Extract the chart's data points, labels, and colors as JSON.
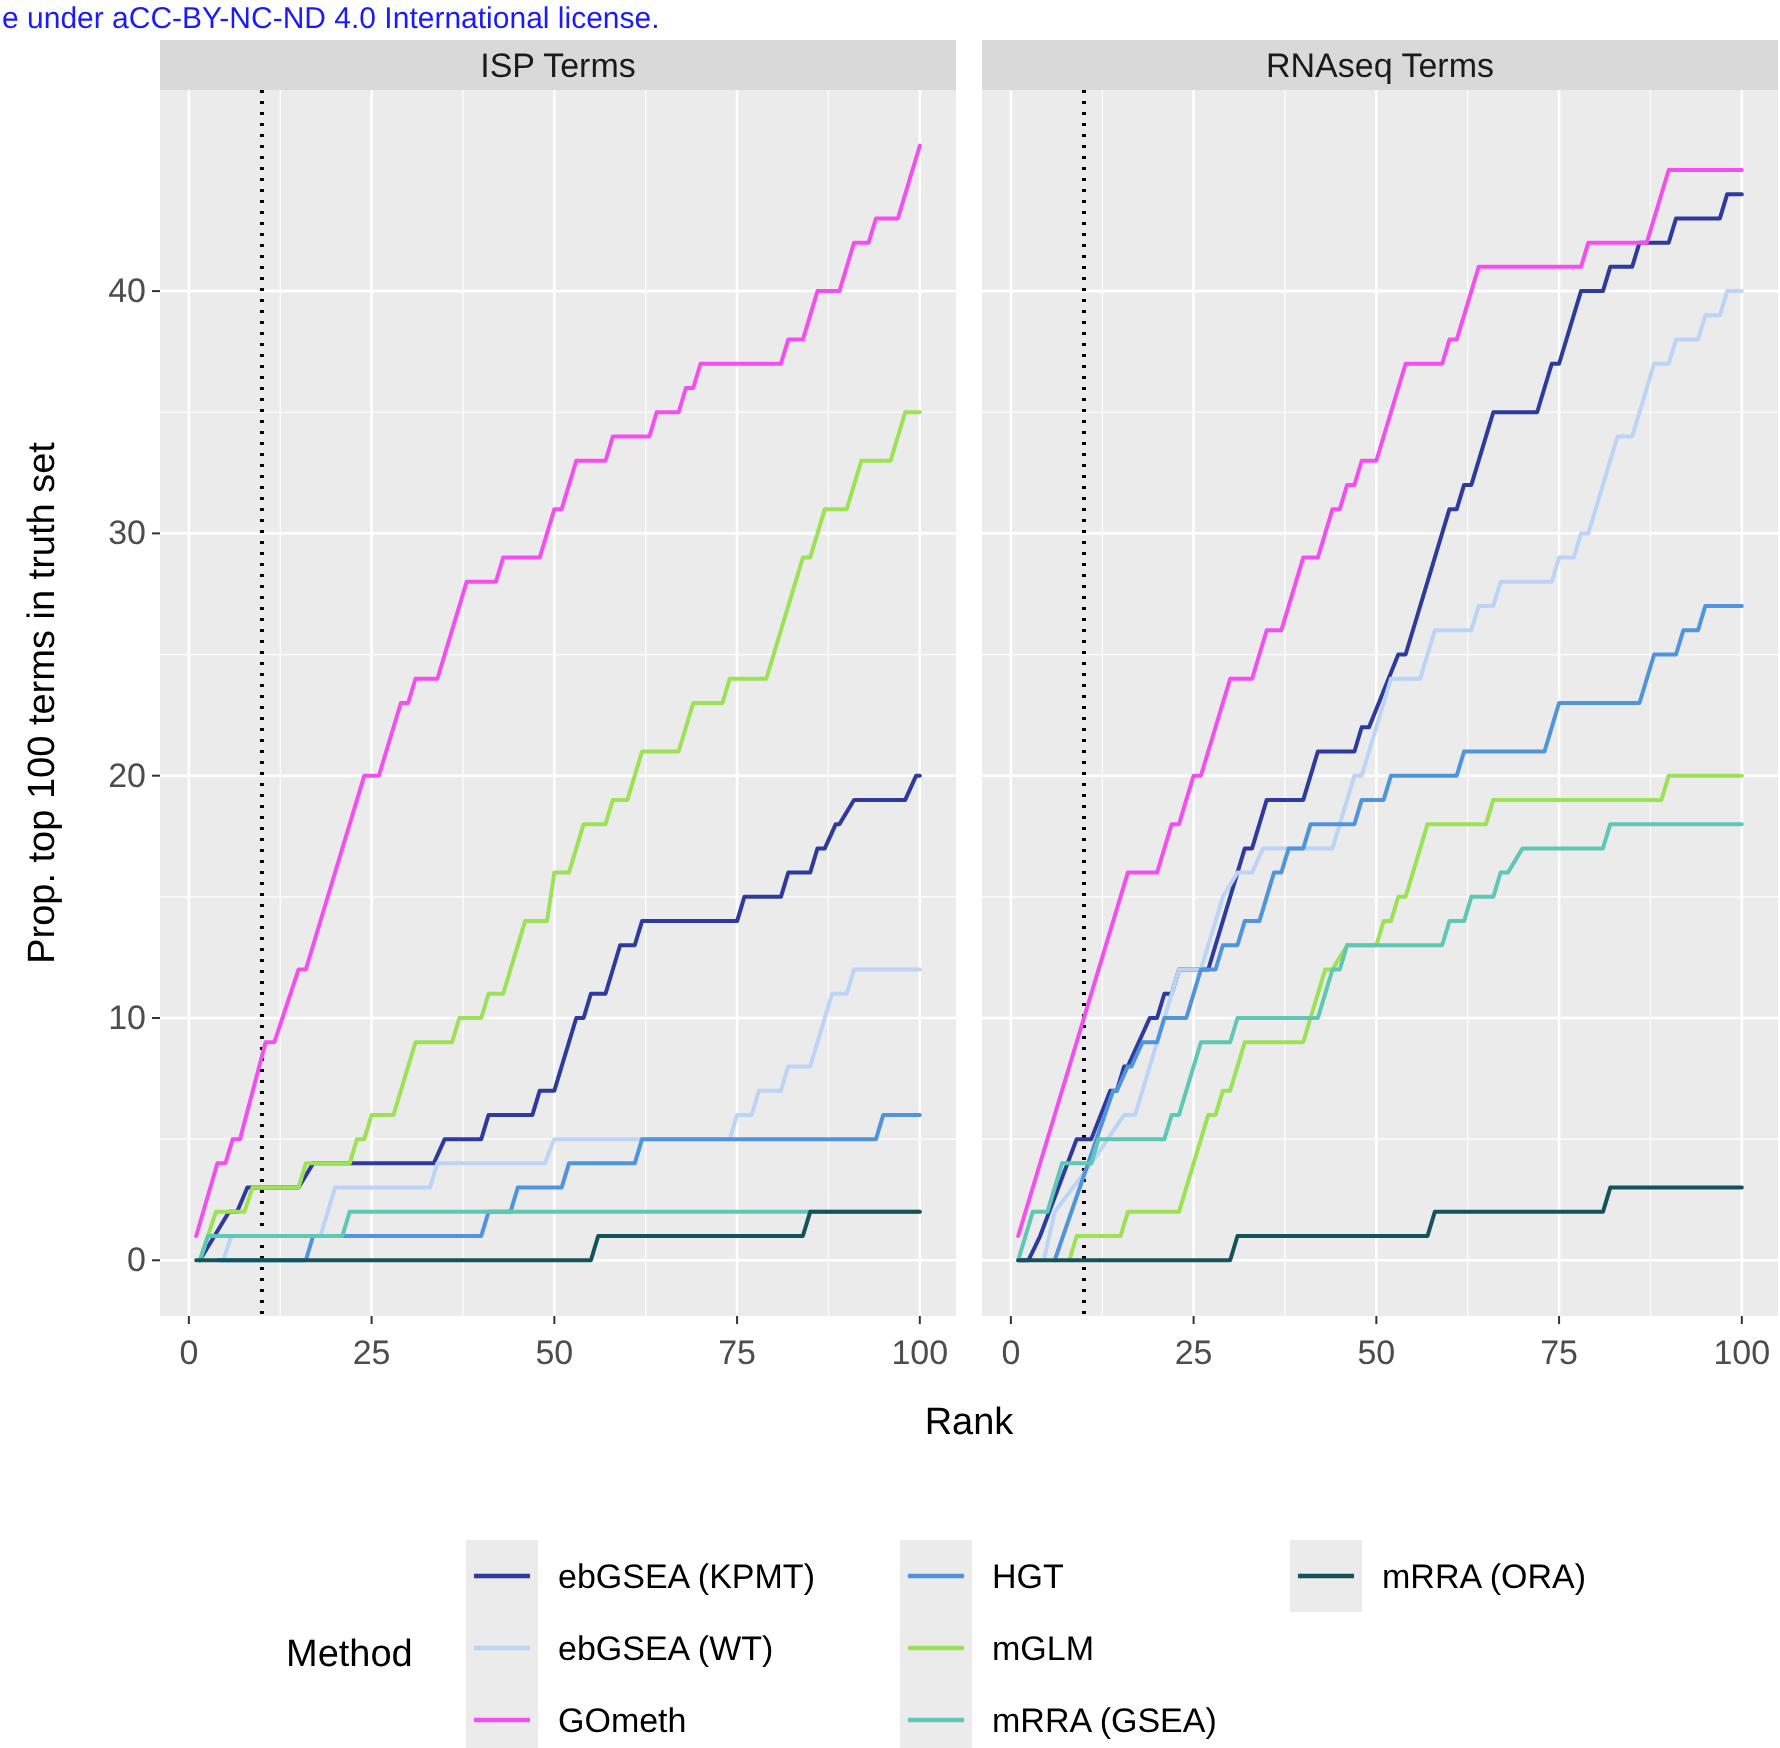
{
  "chart_data": [
    {
      "type": "line",
      "title": "ISP Terms",
      "xlabel": "Rank",
      "ylabel": "Prop. top 100 terms in truth set",
      "legend_title": "Method",
      "legend": "bottom",
      "grid": true,
      "line_style": "solid",
      "annotations": [
        "e under aCC-BY-NC-ND 4.0 International license."
      ],
      "xlim": [
        -3.95,
        104.95
      ],
      "ylim": [
        -2.3,
        48.3
      ],
      "xticks": [
        0,
        25,
        50,
        75,
        100
      ],
      "yticks": [
        0,
        10,
        20,
        30,
        40
      ],
      "ref_lines": [
        {
          "axis": "x",
          "value": 10,
          "color": "#000000",
          "line_style": "dotted"
        }
      ],
      "series": [
        {
          "name": "ebGSEA (KPMT)",
          "color": "#2e3a9e",
          "x": [
            1.5,
            5.5,
            6.6,
            8,
            15,
            17,
            33.5,
            35,
            40,
            41,
            47,
            48,
            50,
            53,
            54,
            55,
            57,
            59,
            61,
            62,
            75,
            76,
            81,
            82,
            85,
            86,
            87,
            88.5,
            89,
            91,
            98,
            99.5,
            100
          ],
          "values": [
            0,
            2,
            2,
            3,
            3,
            4,
            4,
            5,
            5,
            6,
            6,
            7,
            7,
            10,
            10,
            11,
            11,
            13,
            13,
            14,
            14,
            15,
            15,
            16,
            16,
            17,
            17,
            18,
            18,
            19,
            19,
            20,
            20
          ]
        },
        {
          "name": "ebGSEA (WT)",
          "color": "#bcd4f5",
          "x": [
            4.7,
            5.8,
            18,
            20,
            33,
            34,
            48.7,
            50,
            74,
            75,
            77,
            78,
            81,
            82,
            85,
            88,
            90,
            91,
            100
          ],
          "values": [
            0,
            1,
            1,
            3,
            3,
            4,
            4,
            5,
            5,
            6,
            6,
            7,
            7,
            8,
            8,
            11,
            11,
            12,
            12
          ]
        },
        {
          "name": "GOmeth",
          "color": "#f54ef0",
          "x": [
            1,
            3.9,
            5,
            6,
            7,
            10.5,
            11.7,
            15,
            16,
            24,
            26,
            29,
            30,
            31,
            34,
            38,
            42,
            43,
            48,
            50,
            51,
            53,
            57,
            58,
            63,
            64,
            67,
            68,
            69,
            70,
            81,
            82,
            84,
            86,
            89,
            91,
            93,
            94,
            97,
            100
          ],
          "values": [
            1,
            4,
            4,
            5,
            5,
            9,
            9,
            12,
            12,
            20,
            20,
            23,
            23,
            24,
            24,
            28,
            28,
            29,
            29,
            31,
            31,
            33,
            33,
            34,
            34,
            35,
            35,
            36,
            36,
            37,
            37,
            38,
            38,
            40,
            40,
            42,
            42,
            43,
            43,
            46
          ]
        },
        {
          "name": "HGT",
          "color": "#4f94dc",
          "x": [
            4,
            16,
            17,
            40,
            41,
            44,
            45,
            51,
            52,
            61,
            62,
            94,
            95,
            100
          ],
          "values": [
            0,
            0,
            1,
            1,
            2,
            2,
            3,
            3,
            4,
            4,
            5,
            5,
            6,
            6
          ]
        },
        {
          "name": "mGLM",
          "color": "#9be255",
          "x": [
            1.5,
            3.7,
            7.6,
            8.7,
            15,
            16,
            22,
            23,
            24,
            25,
            28,
            31,
            36,
            37,
            40,
            41,
            43,
            46,
            49,
            50,
            52,
            54,
            57,
            58,
            60,
            62,
            67,
            69,
            73,
            74,
            79,
            84,
            85,
            87,
            90,
            92,
            96,
            98,
            100
          ],
          "values": [
            0,
            2,
            2,
            3,
            3,
            4,
            4,
            5,
            5,
            6,
            6,
            9,
            9,
            10,
            10,
            11,
            11,
            14,
            14,
            16,
            16,
            18,
            18,
            19,
            19,
            21,
            21,
            23,
            23,
            24,
            24,
            29,
            29,
            31,
            31,
            33,
            33,
            35,
            35
          ]
        },
        {
          "name": "mRRA (GSEA)",
          "color": "#5ec8b4",
          "x": [
            1.5,
            2.6,
            21,
            22,
            84,
            100
          ],
          "values": [
            0,
            1,
            1,
            2,
            2,
            2
          ]
        },
        {
          "name": "mRRA (ORA)",
          "color": "#14535a",
          "x": [
            1,
            55,
            56,
            84,
            85,
            100
          ],
          "values": [
            0,
            0,
            1,
            1,
            2,
            2
          ]
        }
      ]
    },
    {
      "type": "line",
      "title": "RNAseq Terms",
      "grid": true,
      "line_style": "solid",
      "tick_labels": "x",
      "xlim": [
        -3.95,
        104.95
      ],
      "ylim": [
        -2.3,
        48.3
      ],
      "xticks": [
        0,
        25,
        50,
        75,
        100
      ],
      "yticks": [
        0,
        10,
        20,
        30,
        40
      ],
      "ref_lines": [
        {
          "axis": "x",
          "value": 10,
          "color": "#000000",
          "line_style": "dotted"
        }
      ],
      "series": [
        {
          "name": "ebGSEA (KPMT)",
          "color": "#2e3a9e",
          "x": [
            1,
            2.4,
            4,
            9,
            11,
            13.6,
            14.5,
            15.5,
            16,
            19,
            20,
            21,
            22,
            23,
            27,
            32,
            33,
            35,
            40,
            42,
            47,
            48,
            49,
            53,
            54,
            60,
            61,
            62,
            63,
            66,
            72,
            74,
            75,
            78,
            81,
            82,
            85,
            86,
            90,
            91,
            97,
            98,
            100
          ],
          "values": [
            0,
            0,
            1,
            5,
            5,
            7,
            7,
            8,
            8,
            10,
            10,
            11,
            11,
            12,
            12,
            17,
            17,
            19,
            19,
            21,
            21,
            22,
            22,
            25,
            25,
            31,
            31,
            32,
            32,
            35,
            35,
            37,
            37,
            40,
            40,
            41,
            41,
            42,
            42,
            43,
            43,
            44,
            44
          ]
        },
        {
          "name": "ebGSEA (WT)",
          "color": "#bcd4f5",
          "x": [
            4.5,
            6,
            11,
            15.5,
            17,
            20,
            23,
            26,
            29,
            31,
            33,
            34.5,
            44,
            47,
            48,
            52,
            56,
            58,
            63,
            64,
            66,
            67,
            74,
            75,
            77,
            78,
            79,
            83,
            85,
            88,
            90,
            91,
            94,
            95,
            97,
            98,
            100
          ],
          "values": [
            0,
            2,
            4,
            6,
            6,
            9,
            12,
            12,
            15,
            16,
            16,
            17,
            17,
            20,
            20,
            24,
            24,
            26,
            26,
            27,
            27,
            28,
            28,
            29,
            29,
            30,
            30,
            34,
            34,
            37,
            37,
            38,
            38,
            39,
            39,
            40,
            40
          ]
        },
        {
          "name": "GOmeth",
          "color": "#f54ef0",
          "x": [
            1,
            16,
            20,
            22,
            23,
            25,
            26,
            30,
            33,
            35,
            37,
            40,
            42,
            44,
            45,
            46,
            47,
            48,
            50,
            54,
            59,
            60,
            61,
            64,
            78,
            79,
            87,
            90,
            100
          ],
          "values": [
            1,
            16,
            16,
            18,
            18,
            20,
            20,
            24,
            24,
            26,
            26,
            29,
            29,
            31,
            31,
            32,
            32,
            33,
            33,
            37,
            37,
            38,
            38,
            41,
            41,
            42,
            42,
            45,
            45
          ]
        },
        {
          "name": "HGT",
          "color": "#4f94dc",
          "x": [
            6,
            14,
            14.5,
            16,
            16.5,
            18,
            20,
            21,
            24,
            26,
            28,
            29,
            31,
            32,
            34,
            36,
            37,
            38,
            40,
            41,
            47,
            48,
            51,
            52,
            61,
            62,
            73,
            75,
            86,
            88,
            91,
            92,
            94,
            95,
            100
          ],
          "values": [
            0,
            7,
            7,
            8,
            8,
            9,
            9,
            10,
            10,
            12,
            12,
            13,
            13,
            14,
            14,
            16,
            16,
            17,
            17,
            18,
            18,
            19,
            19,
            20,
            20,
            21,
            21,
            23,
            23,
            25,
            25,
            26,
            26,
            27,
            27
          ]
        },
        {
          "name": "mGLM",
          "color": "#9be255",
          "x": [
            8,
            9,
            15,
            16,
            23,
            27,
            28,
            29,
            30,
            32,
            40,
            43,
            44,
            46,
            50,
            51,
            52,
            53,
            54,
            57,
            65,
            66,
            89,
            90,
            100
          ],
          "values": [
            0,
            1,
            1,
            2,
            2,
            6,
            6,
            7,
            7,
            9,
            9,
            12,
            12,
            13,
            13,
            14,
            14,
            15,
            15,
            18,
            18,
            19,
            19,
            20,
            20
          ]
        },
        {
          "name": "mRRA (GSEA)",
          "color": "#5ec8b4",
          "x": [
            1,
            3,
            5,
            7,
            11,
            12,
            21,
            22,
            23,
            26,
            30,
            31,
            42,
            44,
            45,
            46,
            59,
            60,
            62,
            63,
            66,
            67,
            68,
            70,
            81,
            82,
            100
          ],
          "values": [
            0,
            2,
            2,
            4,
            4,
            5,
            5,
            6,
            6,
            9,
            9,
            10,
            10,
            12,
            12,
            13,
            13,
            14,
            14,
            15,
            15,
            16,
            16,
            17,
            17,
            18,
            18
          ]
        },
        {
          "name": "mRRA (ORA)",
          "color": "#14535a",
          "x": [
            1,
            30,
            31,
            57,
            58,
            81,
            82,
            100
          ],
          "values": [
            0,
            0,
            1,
            1,
            2,
            2,
            3,
            3
          ]
        }
      ]
    }
  ]
}
